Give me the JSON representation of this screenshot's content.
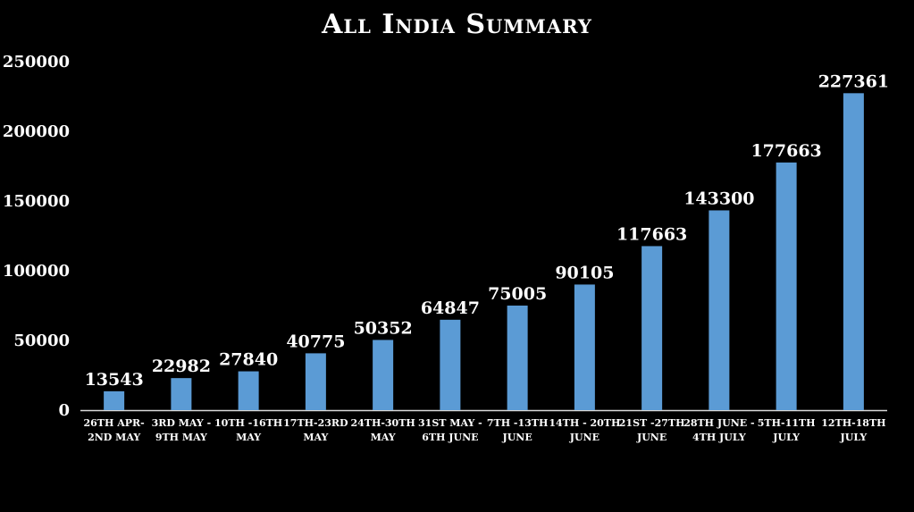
{
  "chart_data": {
    "type": "bar",
    "title": "All India  Summary",
    "xlabel": "",
    "ylabel": "",
    "ylim": [
      0,
      250000
    ],
    "yticks": [
      "0",
      "50000",
      "100000",
      "150000",
      "200000",
      "250000"
    ],
    "bar_color": "#5b9bd5",
    "background": "#000000",
    "text_color": "#ffffff",
    "grid": false,
    "categories": [
      [
        "26TH APR-",
        "2ND MAY"
      ],
      [
        "3RD MAY -",
        "9TH MAY"
      ],
      [
        "10TH -16TH",
        "MAY"
      ],
      [
        "17TH-23RD",
        "MAY"
      ],
      [
        "24TH-30TH",
        "MAY"
      ],
      [
        "31ST MAY -",
        "6TH JUNE"
      ],
      [
        "7TH -13TH",
        "JUNE"
      ],
      [
        "14TH - 20TH",
        "JUNE"
      ],
      [
        "21ST -27TH",
        "JUNE"
      ],
      [
        "28TH JUNE -",
        "4TH JULY"
      ],
      [
        "5TH-11TH",
        "JULY"
      ],
      [
        "12TH-18TH",
        "JULY"
      ]
    ],
    "values": [
      13543,
      22982,
      27840,
      40775,
      50352,
      64847,
      75005,
      90105,
      117663,
      143300,
      177663,
      227361
    ]
  }
}
